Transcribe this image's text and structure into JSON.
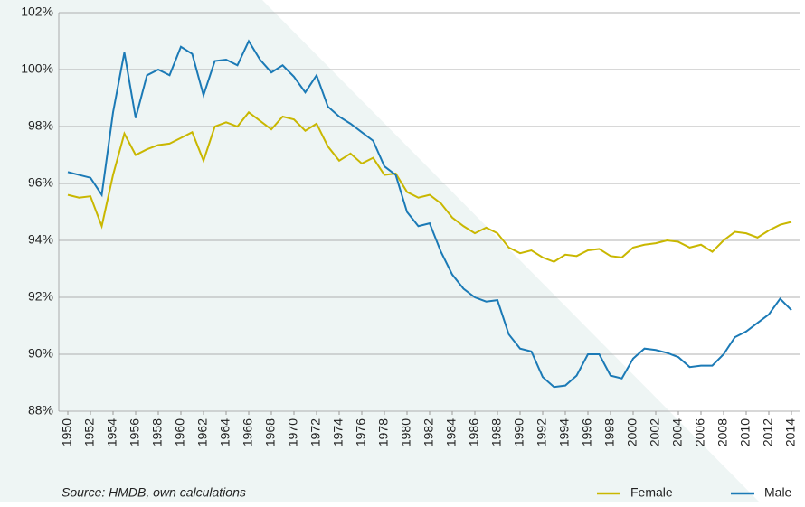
{
  "chart_data": {
    "type": "line",
    "x": [
      1950,
      1951,
      1952,
      1953,
      1954,
      1955,
      1956,
      1957,
      1958,
      1959,
      1960,
      1961,
      1962,
      1963,
      1964,
      1965,
      1966,
      1967,
      1968,
      1969,
      1970,
      1971,
      1972,
      1973,
      1974,
      1975,
      1976,
      1977,
      1978,
      1979,
      1980,
      1981,
      1982,
      1983,
      1984,
      1985,
      1986,
      1987,
      1988,
      1989,
      1990,
      1991,
      1992,
      1993,
      1994,
      1995,
      1996,
      1997,
      1998,
      1999,
      2000,
      2001,
      2002,
      2003,
      2004,
      2005,
      2006,
      2007,
      2008,
      2009,
      2010,
      2011,
      2012,
      2013,
      2014
    ],
    "series": [
      {
        "name": "Female",
        "color": "#c9b700",
        "values": [
          95.6,
          95.5,
          95.55,
          94.5,
          96.3,
          97.75,
          97.0,
          97.2,
          97.35,
          97.4,
          97.6,
          97.8,
          96.8,
          98.0,
          98.15,
          98.0,
          98.5,
          98.2,
          97.9,
          98.35,
          98.25,
          97.85,
          98.1,
          97.3,
          96.8,
          97.05,
          96.7,
          96.9,
          96.3,
          96.35,
          95.7,
          95.5,
          95.6,
          95.3,
          94.8,
          94.5,
          94.25,
          94.45,
          94.25,
          93.75,
          93.55,
          93.65,
          93.4,
          93.25,
          93.5,
          93.45,
          93.65,
          93.7,
          93.45,
          93.4,
          93.75,
          93.85,
          93.9,
          94.0,
          93.95,
          93.75,
          93.85,
          93.6,
          94.0,
          94.3,
          94.25,
          94.1,
          94.35,
          94.55,
          94.65
        ]
      },
      {
        "name": "Male",
        "color": "#1b7ab6",
        "values": [
          96.4,
          96.3,
          96.2,
          95.6,
          98.5,
          100.6,
          98.3,
          99.8,
          100.0,
          99.8,
          100.8,
          100.55,
          99.1,
          100.3,
          100.35,
          100.15,
          101.0,
          100.35,
          99.9,
          100.15,
          99.75,
          99.2,
          99.8,
          98.7,
          98.35,
          98.1,
          97.8,
          97.5,
          96.6,
          96.3,
          95.0,
          94.5,
          94.6,
          93.6,
          92.8,
          92.3,
          92.0,
          91.85,
          91.9,
          90.7,
          90.2,
          90.1,
          89.2,
          88.85,
          88.9,
          89.25,
          90.0,
          90.0,
          89.25,
          89.15,
          89.85,
          90.2,
          90.15,
          90.05,
          89.9,
          89.55,
          89.6,
          89.6,
          90.0,
          90.6,
          90.8,
          91.1,
          91.4,
          91.95,
          91.55
        ]
      }
    ],
    "xlim": [
      1949.2,
      2014.8
    ],
    "xticks": [
      1950,
      1952,
      1954,
      1956,
      1958,
      1960,
      1962,
      1964,
      1966,
      1968,
      1970,
      1972,
      1974,
      1976,
      1978,
      1980,
      1982,
      1984,
      1986,
      1988,
      1990,
      1992,
      1994,
      1996,
      1998,
      2000,
      2002,
      2004,
      2006,
      2008,
      2010,
      2012,
      2014
    ],
    "ylim": [
      88,
      102
    ],
    "yticks": [
      {
        "value": 88,
        "label": "88%"
      },
      {
        "value": 90,
        "label": "90%"
      },
      {
        "value": 92,
        "label": "92%"
      },
      {
        "value": 94,
        "label": "94%"
      },
      {
        "value": 96,
        "label": "96%"
      },
      {
        "value": 98,
        "label": "98%"
      },
      {
        "value": 100,
        "label": "100%"
      },
      {
        "value": 102,
        "label": "102%"
      }
    ],
    "grid": true,
    "legend": "bottom-right",
    "source": "Source: HMDB, own calculations"
  }
}
